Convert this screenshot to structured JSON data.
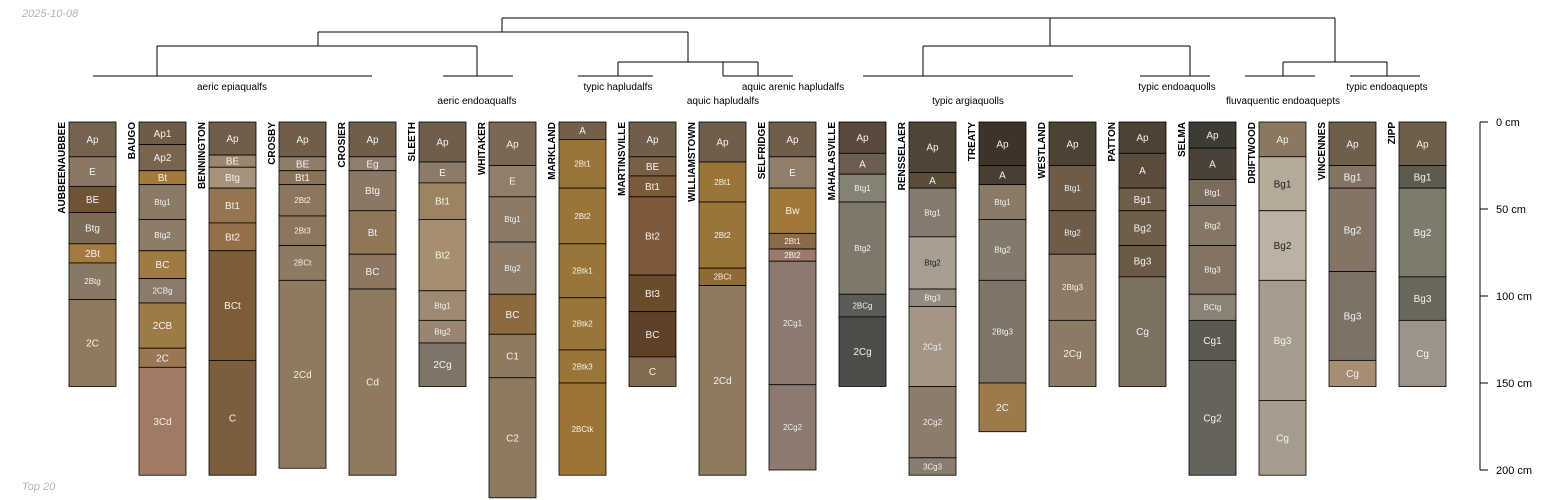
{
  "header": {
    "date": "2025-10-08"
  },
  "footer": {
    "label": "Top 20"
  },
  "depth_axis": {
    "unit": "cm",
    "ticks": [
      "0 cm",
      "50 cm",
      "100 cm",
      "150 cm",
      "200 cm"
    ]
  },
  "clusters": [
    {
      "label": "aeric epiaqualfs"
    },
    {
      "label": "aeric endoaqualfs"
    },
    {
      "label": "typic hapludalfs"
    },
    {
      "label": "aquic arenic hapludalfs"
    },
    {
      "label": "aquic hapludalfs"
    },
    {
      "label": "typic argiaquolls"
    },
    {
      "label": "typic endoaquolls"
    },
    {
      "label": "fluvaquentic endoaquepts"
    },
    {
      "label": "typic endoaquepts"
    }
  ],
  "profiles": [
    {
      "name": "AUBBEENAUBBEE",
      "horizons": [
        {
          "name": "Ap",
          "top": 0,
          "bottom": 20,
          "color": "#756352"
        },
        {
          "name": "E",
          "top": 20,
          "bottom": 37,
          "color": "#8a7866"
        },
        {
          "name": "BE",
          "top": 37,
          "bottom": 52,
          "color": "#6f5335"
        },
        {
          "name": "Btg",
          "top": 52,
          "bottom": 70,
          "color": "#7a6a56"
        },
        {
          "name": "2Bt",
          "top": 70,
          "bottom": 81,
          "color": "#a47a3e"
        },
        {
          "name": "2Btg",
          "top": 81,
          "bottom": 102,
          "color": "#887866"
        },
        {
          "name": "2C",
          "top": 102,
          "bottom": 152,
          "color": "#8f7a5e"
        }
      ]
    },
    {
      "name": "BAUGO",
      "horizons": [
        {
          "name": "Ap1",
          "top": 0,
          "bottom": 13,
          "color": "#6f5c48"
        },
        {
          "name": "Ap2",
          "top": 13,
          "bottom": 28,
          "color": "#786550"
        },
        {
          "name": "Bt",
          "top": 28,
          "bottom": 36,
          "color": "#a27a3a"
        },
        {
          "name": "Btg1",
          "top": 36,
          "bottom": 56,
          "color": "#8b7a66"
        },
        {
          "name": "Btg2",
          "top": 56,
          "bottom": 74,
          "color": "#8d7c68"
        },
        {
          "name": "BC",
          "top": 74,
          "bottom": 90,
          "color": "#a07a40"
        },
        {
          "name": "2CBg",
          "top": 90,
          "bottom": 104,
          "color": "#8a7c6a"
        },
        {
          "name": "2CB",
          "top": 104,
          "bottom": 130,
          "color": "#9e7a48"
        },
        {
          "name": "2C",
          "top": 130,
          "bottom": 141,
          "color": "#9c7552"
        },
        {
          "name": "3Cd",
          "top": 141,
          "bottom": 203,
          "color": "#a07a62"
        }
      ]
    },
    {
      "name": "BENNINGTON",
      "horizons": [
        {
          "name": "Ap",
          "top": 0,
          "bottom": 19,
          "color": "#705d4a"
        },
        {
          "name": "BE",
          "top": 19,
          "bottom": 26,
          "color": "#9a8770"
        },
        {
          "name": "Btg",
          "top": 26,
          "bottom": 38,
          "color": "#a6937c"
        },
        {
          "name": "Bt1",
          "top": 38,
          "bottom": 58,
          "color": "#957450"
        },
        {
          "name": "Bt2",
          "top": 58,
          "bottom": 74,
          "color": "#947048"
        },
        {
          "name": "BCt",
          "top": 74,
          "bottom": 137,
          "color": "#7d5d38"
        },
        {
          "name": "C",
          "top": 137,
          "bottom": 203,
          "color": "#7a5e3e"
        }
      ]
    },
    {
      "name": "CROSBY",
      "horizons": [
        {
          "name": "Ap",
          "top": 0,
          "bottom": 20,
          "color": "#6f5e4c"
        },
        {
          "name": "BE",
          "top": 20,
          "bottom": 28,
          "color": "#8f7d6a"
        },
        {
          "name": "Bt1",
          "top": 28,
          "bottom": 36,
          "color": "#8a7258"
        },
        {
          "name": "2Bt2",
          "top": 36,
          "bottom": 54,
          "color": "#8c7660"
        },
        {
          "name": "2Bt3",
          "top": 54,
          "bottom": 71,
          "color": "#8c7660"
        },
        {
          "name": "2BCt",
          "top": 71,
          "bottom": 91,
          "color": "#8b7a64"
        },
        {
          "name": "2Cd",
          "top": 91,
          "bottom": 199,
          "color": "#8e7a5e"
        }
      ]
    },
    {
      "name": "CROSIER",
      "horizons": [
        {
          "name": "Ap",
          "top": 0,
          "bottom": 20,
          "color": "#6f5e4c"
        },
        {
          "name": "Eg",
          "top": 20,
          "bottom": 28,
          "color": "#8e7e6c"
        },
        {
          "name": "Btg",
          "top": 28,
          "bottom": 51,
          "color": "#8a7864"
        },
        {
          "name": "Bt",
          "top": 51,
          "bottom": 76,
          "color": "#8f7658"
        },
        {
          "name": "BC",
          "top": 76,
          "bottom": 96,
          "color": "#8c7862"
        },
        {
          "name": "Cd",
          "top": 96,
          "bottom": 203,
          "color": "#8e7a5e"
        }
      ]
    },
    {
      "name": "SLEETH",
      "horizons": [
        {
          "name": "Ap",
          "top": 0,
          "bottom": 23,
          "color": "#6f5e4c"
        },
        {
          "name": "E",
          "top": 23,
          "bottom": 35,
          "color": "#8c7b68"
        },
        {
          "name": "Bt1",
          "top": 35,
          "bottom": 56,
          "color": "#9c8462"
        },
        {
          "name": "Bt2",
          "top": 56,
          "bottom": 97,
          "color": "#a68e6e"
        },
        {
          "name": "Btg1",
          "top": 97,
          "bottom": 114,
          "color": "#9e8a74"
        },
        {
          "name": "Btg2",
          "top": 114,
          "bottom": 127,
          "color": "#988470"
        },
        {
          "name": "2Cg",
          "top": 127,
          "bottom": 152,
          "color": "#7e7568"
        }
      ]
    },
    {
      "name": "WHITAKER",
      "horizons": [
        {
          "name": "Ap",
          "top": 0,
          "bottom": 25,
          "color": "#7a6854"
        },
        {
          "name": "E",
          "top": 25,
          "bottom": 43,
          "color": "#8e7e6a"
        },
        {
          "name": "Btg1",
          "top": 43,
          "bottom": 69,
          "color": "#8a7a66"
        },
        {
          "name": "Btg2",
          "top": 69,
          "bottom": 99,
          "color": "#8c7c68"
        },
        {
          "name": "BC",
          "top": 99,
          "bottom": 122,
          "color": "#8b6a40"
        },
        {
          "name": "C1",
          "top": 122,
          "bottom": 147,
          "color": "#8e7a5e"
        },
        {
          "name": "C2",
          "top": 147,
          "bottom": 216,
          "color": "#8e7a5e"
        }
      ]
    },
    {
      "name": "MARKLAND",
      "horizons": [
        {
          "name": "A",
          "top": 0,
          "bottom": 10,
          "color": "#735f4a"
        },
        {
          "name": "2Bt1",
          "top": 10,
          "bottom": 38,
          "color": "#9b7538"
        },
        {
          "name": "2Bt2",
          "top": 38,
          "bottom": 70,
          "color": "#9b7538"
        },
        {
          "name": "2Btk1",
          "top": 70,
          "bottom": 101,
          "color": "#9b7538"
        },
        {
          "name": "2Btk2",
          "top": 101,
          "bottom": 131,
          "color": "#9b7538"
        },
        {
          "name": "2Btk3",
          "top": 131,
          "bottom": 150,
          "color": "#9b7538"
        },
        {
          "name": "2BCtk",
          "top": 150,
          "bottom": 203,
          "color": "#9c7536"
        }
      ]
    },
    {
      "name": "MARTINSVILLE",
      "horizons": [
        {
          "name": "Ap",
          "top": 0,
          "bottom": 20,
          "color": "#6f5e4c"
        },
        {
          "name": "BE",
          "top": 20,
          "bottom": 31,
          "color": "#795f44"
        },
        {
          "name": "Bt1",
          "top": 31,
          "bottom": 43,
          "color": "#7a5a38"
        },
        {
          "name": "Bt2",
          "top": 43,
          "bottom": 88,
          "color": "#7e583a"
        },
        {
          "name": "Bt3",
          "top": 88,
          "bottom": 109,
          "color": "#6a4c2c"
        },
        {
          "name": "BC",
          "top": 109,
          "bottom": 135,
          "color": "#5e4128"
        },
        {
          "name": "C",
          "top": 135,
          "bottom": 152,
          "color": "#806a52"
        }
      ]
    },
    {
      "name": "WILLIAMSTOWN",
      "horizons": [
        {
          "name": "Ap",
          "top": 0,
          "bottom": 23,
          "color": "#6f5e4c"
        },
        {
          "name": "2Bt1",
          "top": 23,
          "bottom": 46,
          "color": "#9b7538"
        },
        {
          "name": "2Bt2",
          "top": 46,
          "bottom": 84,
          "color": "#9b7538"
        },
        {
          "name": "2BCt",
          "top": 84,
          "bottom": 94,
          "color": "#8f6a35"
        },
        {
          "name": "2Cd",
          "top": 94,
          "bottom": 203,
          "color": "#8e7a5e"
        }
      ]
    },
    {
      "name": "SELFRIDGE",
      "horizons": [
        {
          "name": "Ap",
          "top": 0,
          "bottom": 20,
          "color": "#6f5e4c"
        },
        {
          "name": "E",
          "top": 20,
          "bottom": 38,
          "color": "#8e7e6a"
        },
        {
          "name": "Bw",
          "top": 38,
          "bottom": 64,
          "color": "#a07838"
        },
        {
          "name": "2Bt1",
          "top": 64,
          "bottom": 73,
          "color": "#8c6a48"
        },
        {
          "name": "2Bt2",
          "top": 73,
          "bottom": 80,
          "color": "#9c7a6a"
        },
        {
          "name": "2Cg1",
          "top": 80,
          "bottom": 151,
          "color": "#8c7a70"
        },
        {
          "name": "2Cg2",
          "top": 151,
          "bottom": 200,
          "color": "#8c7a70"
        }
      ]
    },
    {
      "name": "MAHALASVILLE",
      "horizons": [
        {
          "name": "Ap",
          "top": 0,
          "bottom": 18,
          "color": "#584a3c"
        },
        {
          "name": "A",
          "top": 18,
          "bottom": 30,
          "color": "#6c5e4e"
        },
        {
          "name": "Btg1",
          "top": 30,
          "bottom": 46,
          "color": "#848272"
        },
        {
          "name": "Btg2",
          "top": 46,
          "bottom": 99,
          "color": "#7e786a"
        },
        {
          "name": "2BCg",
          "top": 99,
          "bottom": 112,
          "color": "#5c5c56"
        },
        {
          "name": "2Cg",
          "top": 112,
          "bottom": 152,
          "color": "#4c4c48"
        }
      ]
    },
    {
      "name": "RENSSELAER",
      "horizons": [
        {
          "name": "Ap",
          "top": 0,
          "bottom": 29,
          "color": "#514538"
        },
        {
          "name": "A",
          "top": 29,
          "bottom": 38,
          "color": "#5c4c3a"
        },
        {
          "name": "Btg1",
          "top": 38,
          "bottom": 66,
          "color": "#857a6e"
        },
        {
          "name": "Btg2",
          "top": 66,
          "bottom": 96,
          "color": "#a89e92"
        },
        {
          "name": "Btg3",
          "top": 96,
          "bottom": 106,
          "color": "#958a7e"
        },
        {
          "name": "2Cg1",
          "top": 106,
          "bottom": 152,
          "color": "#a39686"
        },
        {
          "name": "2Cg2",
          "top": 152,
          "bottom": 193,
          "color": "#8c7c6c"
        },
        {
          "name": "3Cg3",
          "top": 193,
          "bottom": 203,
          "color": "#8a7c6e"
        }
      ]
    },
    {
      "name": "TREATY",
      "horizons": [
        {
          "name": "Ap",
          "top": 0,
          "bottom": 25,
          "color": "#3e3328"
        },
        {
          "name": "A",
          "top": 25,
          "bottom": 36,
          "color": "#4a3e30"
        },
        {
          "name": "Btg1",
          "top": 36,
          "bottom": 56,
          "color": "#8a7b68"
        },
        {
          "name": "Btg2",
          "top": 56,
          "bottom": 91,
          "color": "#847a6c"
        },
        {
          "name": "2Btg3",
          "top": 91,
          "bottom": 150,
          "color": "#7e7468"
        },
        {
          "name": "2C",
          "top": 150,
          "bottom": 178,
          "color": "#9c7a4c"
        }
      ]
    },
    {
      "name": "WESTLAND",
      "horizons": [
        {
          "name": "Ap",
          "top": 0,
          "bottom": 25,
          "color": "#4e4234"
        },
        {
          "name": "Btg1",
          "top": 25,
          "bottom": 51,
          "color": "#6e5c4a"
        },
        {
          "name": "Btg2",
          "top": 51,
          "bottom": 76,
          "color": "#6e5c4a"
        },
        {
          "name": "2Btg3",
          "top": 76,
          "bottom": 114,
          "color": "#8c7a66"
        },
        {
          "name": "2Cg",
          "top": 114,
          "bottom": 152,
          "color": "#8a7a66"
        }
      ]
    },
    {
      "name": "PATTON",
      "horizons": [
        {
          "name": "Ap",
          "top": 0,
          "bottom": 18,
          "color": "#4e4234"
        },
        {
          "name": "A",
          "top": 18,
          "bottom": 38,
          "color": "#5a4c3c"
        },
        {
          "name": "Bg1",
          "top": 38,
          "bottom": 51,
          "color": "#6e5e4c"
        },
        {
          "name": "Bg2",
          "top": 51,
          "bottom": 71,
          "color": "#6e5e4c"
        },
        {
          "name": "Bg3",
          "top": 71,
          "bottom": 89,
          "color": "#6a5a48"
        },
        {
          "name": "Cg",
          "top": 89,
          "bottom": 152,
          "color": "#7c7060"
        }
      ]
    },
    {
      "name": "SELMA",
      "horizons": [
        {
          "name": "Ap",
          "top": 0,
          "bottom": 15,
          "color": "#3e3a34"
        },
        {
          "name": "A",
          "top": 15,
          "bottom": 33,
          "color": "#4a4238"
        },
        {
          "name": "Btg1",
          "top": 33,
          "bottom": 48,
          "color": "#7a6c5c"
        },
        {
          "name": "Btg2",
          "top": 48,
          "bottom": 71,
          "color": "#847664"
        },
        {
          "name": "Btg3",
          "top": 71,
          "bottom": 99,
          "color": "#827464"
        },
        {
          "name": "BCtg",
          "top": 99,
          "bottom": 114,
          "color": "#8a8272"
        },
        {
          "name": "Cg1",
          "top": 114,
          "bottom": 137,
          "color": "#5c5a50"
        },
        {
          "name": "Cg2",
          "top": 137,
          "bottom": 203,
          "color": "#66645a"
        }
      ]
    },
    {
      "name": "DRIFTWOOD",
      "horizons": [
        {
          "name": "Ap",
          "top": 0,
          "bottom": 20,
          "color": "#8a7860"
        },
        {
          "name": "Bg1",
          "top": 20,
          "bottom": 51,
          "color": "#b6aa9a"
        },
        {
          "name": "Bg2",
          "top": 51,
          "bottom": 91,
          "color": "#bcb2a4"
        },
        {
          "name": "Bg3",
          "top": 91,
          "bottom": 160,
          "color": "#a69c8e"
        },
        {
          "name": "Cg",
          "top": 160,
          "bottom": 203,
          "color": "#a69c8e"
        }
      ]
    },
    {
      "name": "VINCENNES",
      "horizons": [
        {
          "name": "Ap",
          "top": 0,
          "bottom": 25,
          "color": "#6e5e4c"
        },
        {
          "name": "Bg1",
          "top": 25,
          "bottom": 38,
          "color": "#847466"
        },
        {
          "name": "Bg2",
          "top": 38,
          "bottom": 86,
          "color": "#847466"
        },
        {
          "name": "Bg3",
          "top": 86,
          "bottom": 137,
          "color": "#7e7266"
        },
        {
          "name": "Cg",
          "top": 137,
          "bottom": 152,
          "color": "#a68e74"
        }
      ]
    },
    {
      "name": "ZIPP",
      "horizons": [
        {
          "name": "Ap",
          "top": 0,
          "bottom": 25,
          "color": "#6e5e4c"
        },
        {
          "name": "Bg1",
          "top": 25,
          "bottom": 38,
          "color": "#5e5a4e"
        },
        {
          "name": "Bg2",
          "top": 38,
          "bottom": 89,
          "color": "#7e7a6c"
        },
        {
          "name": "Bg3",
          "top": 89,
          "bottom": 114,
          "color": "#6a685c"
        },
        {
          "name": "Cg",
          "top": 114,
          "bottom": 152,
          "color": "#9c948a"
        }
      ]
    }
  ]
}
